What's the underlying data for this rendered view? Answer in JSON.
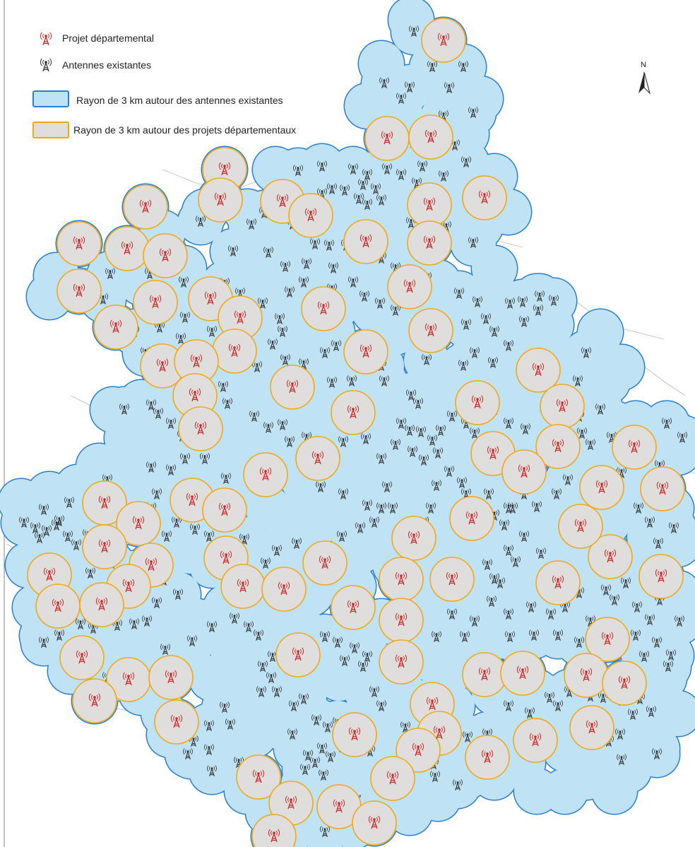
{
  "legend": {
    "projet_label": "Projet départemental",
    "antennes_label": "Antennes existantes",
    "rayon_antennes_label": "Rayon de 3 km autour des antennes existantes",
    "rayon_projets_label": "Rayon de 3 km autour des projets départementaux"
  },
  "north": {
    "letter": "N"
  },
  "colors": {
    "antennes_fill": "#bfe3f5",
    "antennes_stroke": "#2a7fd2",
    "projets_fill": "#e0dedd",
    "projets_stroke": "#f0a818",
    "projet_icon": "#cc2a2a",
    "antenne_icon": "#333333",
    "commune_lines": "#bbbbbb"
  },
  "icons": {
    "projet": "red-antenna-icon",
    "antenne": "black-antenna-icon",
    "north": "north-arrow-icon"
  }
}
